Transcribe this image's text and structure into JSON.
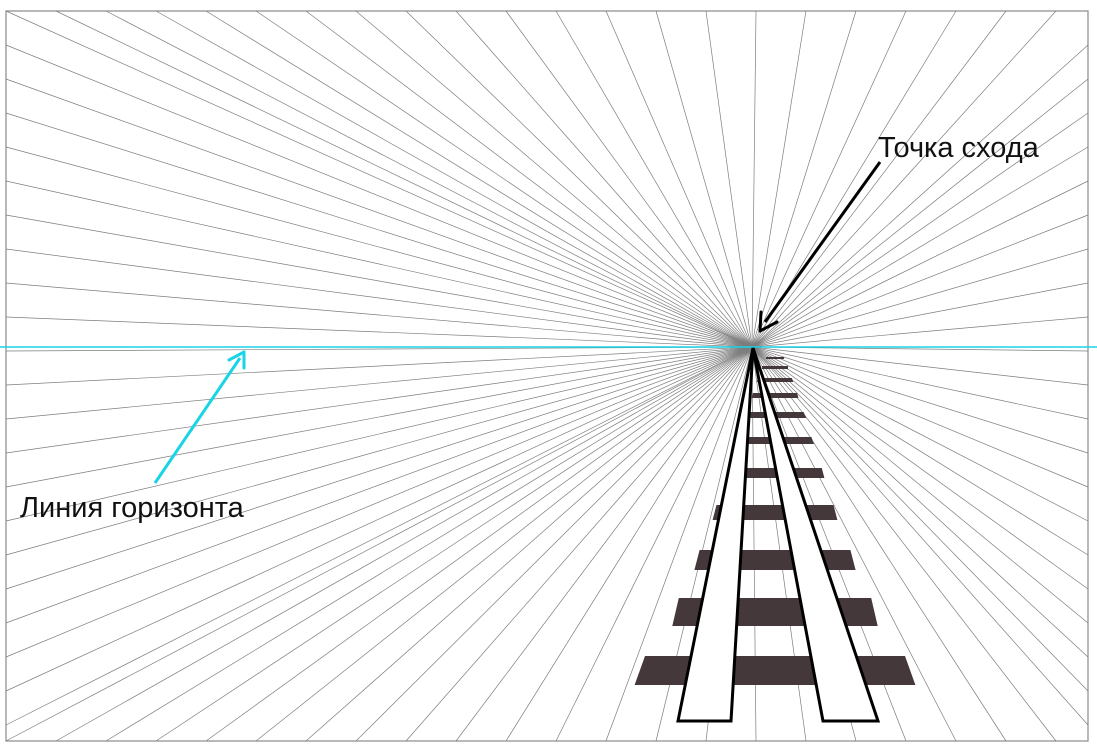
{
  "labels": {
    "vanishing_point": "Точка схода",
    "horizon_line": "Линия горизонта"
  },
  "colors": {
    "background": "#ffffff",
    "frame": "#8a8a8a",
    "ray": "#7d7d7d",
    "horizon": "#19d3e6",
    "sleeper": "#45383a",
    "rail_fill": "#ffffff",
    "rail_stroke": "#000000",
    "arrow_black": "#000000",
    "arrow_cyan": "#19d3e6"
  }
}
